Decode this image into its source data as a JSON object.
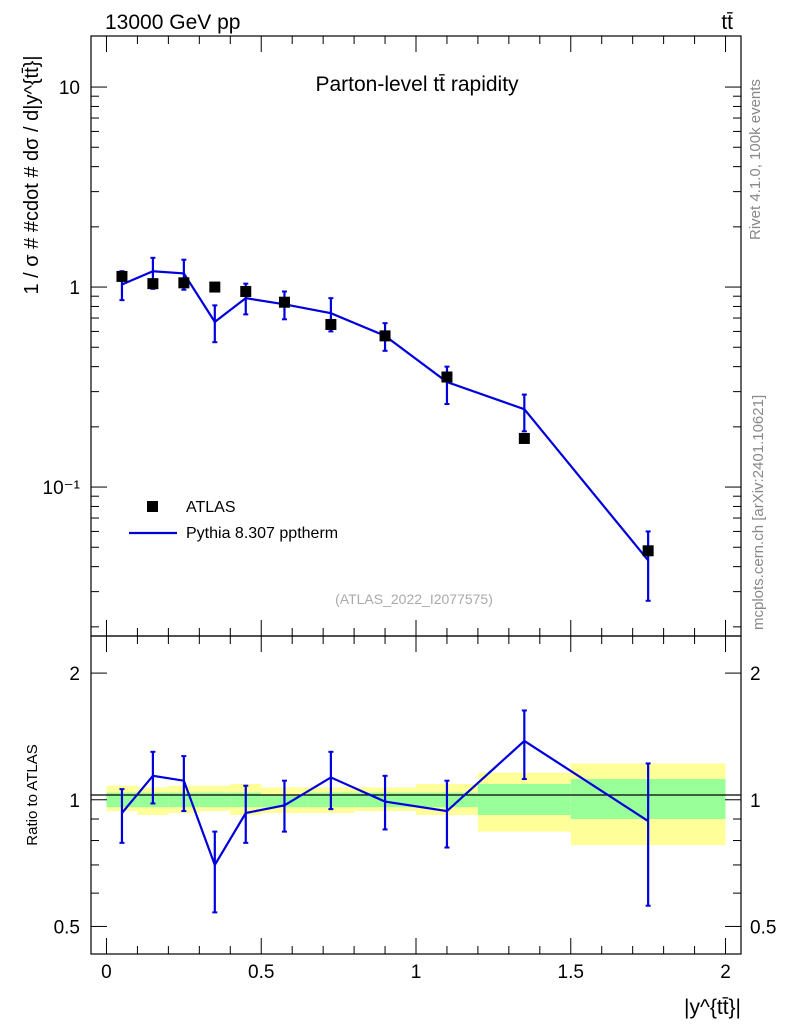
{
  "header": {
    "left": "13000 GeV pp",
    "right": "tt̄"
  },
  "side_labels": {
    "rivet": "Rivet 4.1.0,  100k events",
    "source": "mcplots.cern.ch [arXiv:2401.10621]"
  },
  "chart_data": [
    {
      "type": "line",
      "panel": "main",
      "title": "Parton-level tt̄ rapidity",
      "xlabel": "|y^{tt̄}|",
      "ylabel": "1 / σ # #cdot # dσ / d|y^{tt̄}|",
      "yscale": "log",
      "xlim": [
        -0.05,
        2.05
      ],
      "ylim": [
        0.018,
        18
      ],
      "y_ticks": [
        {
          "value": 10,
          "label": "10"
        },
        {
          "value": 1,
          "label": "1"
        },
        {
          "value": 0.1,
          "label": "10⁻¹"
        }
      ],
      "watermark": "(ATLAS_2022_I2077575)",
      "legend": [
        {
          "name": "ATLAS",
          "style": "marker"
        },
        {
          "name": "Pythia 8.307 pptherm",
          "style": "line"
        }
      ],
      "series": [
        {
          "name": "ATLAS",
          "color": "#000000",
          "x": [
            0.05,
            0.15,
            0.25,
            0.35,
            0.45,
            0.575,
            0.725,
            0.9,
            1.1,
            1.35,
            1.75
          ],
          "y": [
            1.13,
            1.04,
            1.05,
            1.0,
            0.95,
            0.84,
            0.65,
            0.57,
            0.355,
            0.175,
            0.048
          ]
        },
        {
          "name": "Pythia 8.307 pptherm",
          "color": "#0000dd",
          "x": [
            0.05,
            0.15,
            0.25,
            0.35,
            0.45,
            0.575,
            0.725,
            0.9,
            1.1,
            1.35,
            1.75
          ],
          "y": [
            1.03,
            1.2,
            1.17,
            0.67,
            0.88,
            0.82,
            0.74,
            0.57,
            0.335,
            0.245,
            0.043
          ],
          "err_lo": [
            0.86,
            0.98,
            0.97,
            0.53,
            0.73,
            0.69,
            0.6,
            0.48,
            0.26,
            0.19,
            0.027
          ],
          "err_hi": [
            1.2,
            1.4,
            1.37,
            0.81,
            1.04,
            0.95,
            0.88,
            0.66,
            0.4,
            0.29,
            0.06
          ]
        }
      ]
    },
    {
      "type": "line",
      "panel": "ratio",
      "ylabel": "Ratio to ATLAS",
      "xlabel": "|y^{tt̄}|",
      "yscale": "log",
      "xlim": [
        -0.05,
        2.05
      ],
      "ylim": [
        0.43,
        2.45
      ],
      "y_ticks": [
        {
          "value": 2,
          "label": "2"
        },
        {
          "value": 1,
          "label": "1"
        },
        {
          "value": 0.5,
          "label": "0.5"
        }
      ],
      "x_ticks": [
        {
          "value": 0,
          "label": "0"
        },
        {
          "value": 0.5,
          "label": "0.5"
        },
        {
          "value": 1,
          "label": "1"
        },
        {
          "value": 1.5,
          "label": "1.5"
        },
        {
          "value": 2,
          "label": "2"
        }
      ],
      "bands": {
        "bins": [
          [
            0.0,
            0.1
          ],
          [
            0.1,
            0.2
          ],
          [
            0.2,
            0.3
          ],
          [
            0.3,
            0.4
          ],
          [
            0.4,
            0.5
          ],
          [
            0.5,
            0.65
          ],
          [
            0.65,
            0.8
          ],
          [
            0.8,
            1.0
          ],
          [
            1.0,
            1.2
          ],
          [
            1.2,
            1.5
          ],
          [
            1.5,
            2.0
          ]
        ],
        "outer_color": "#ffff99",
        "inner_color": "#99ff99",
        "outer_lo": [
          0.94,
          0.92,
          0.93,
          0.94,
          0.92,
          0.93,
          0.93,
          0.94,
          0.92,
          0.84,
          0.78
        ],
        "outer_hi": [
          1.08,
          1.07,
          1.08,
          1.08,
          1.09,
          1.07,
          1.07,
          1.07,
          1.09,
          1.16,
          1.22
        ],
        "inner_lo": [
          0.96,
          0.96,
          0.96,
          0.96,
          0.96,
          0.96,
          0.96,
          0.96,
          0.96,
          0.92,
          0.9
        ],
        "inner_hi": [
          1.04,
          1.04,
          1.04,
          1.04,
          1.04,
          1.03,
          1.04,
          1.04,
          1.04,
          1.09,
          1.12
        ]
      },
      "series": [
        {
          "name": "Pythia 8.307 pptherm / ATLAS",
          "color": "#0000dd",
          "x": [
            0.05,
            0.15,
            0.25,
            0.35,
            0.45,
            0.575,
            0.725,
            0.9,
            1.1,
            1.35,
            1.75
          ],
          "y": [
            0.93,
            1.14,
            1.11,
            0.7,
            0.93,
            0.97,
            1.13,
            0.99,
            0.94,
            1.38,
            0.89
          ],
          "err_lo": [
            0.79,
            0.98,
            0.94,
            0.54,
            0.79,
            0.84,
            0.95,
            0.85,
            0.77,
            1.12,
            0.56
          ],
          "err_hi": [
            1.06,
            1.3,
            1.27,
            0.84,
            1.08,
            1.11,
            1.3,
            1.14,
            1.11,
            1.63,
            1.22
          ]
        }
      ]
    }
  ]
}
